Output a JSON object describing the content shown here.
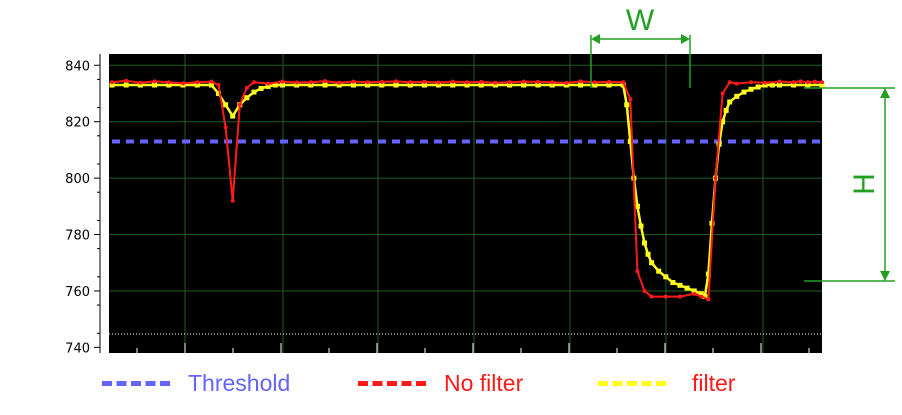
{
  "chart_data": {
    "type": "line",
    "title": "",
    "xlabel": "",
    "ylabel": "",
    "ylim": [
      738,
      844
    ],
    "yticks": [
      "840",
      "820",
      "800",
      "780",
      "760",
      "740"
    ],
    "threshold": 813,
    "annotations": {
      "width_label": "W",
      "height_label": "H"
    },
    "series": [
      {
        "name": "No filter",
        "color": "#ff1a1a",
        "x": [
          0,
          2,
          4,
          6,
          8,
          10,
          12,
          14,
          15,
          16,
          17,
          18,
          19,
          20,
          22,
          24,
          26,
          28,
          30,
          32,
          34,
          36,
          38,
          40,
          42,
          44,
          46,
          48,
          50,
          52,
          54,
          56,
          58,
          60,
          62,
          64,
          66,
          68,
          70,
          72,
          73,
          74,
          75,
          76,
          78,
          80,
          82,
          83,
          84,
          85,
          86,
          87,
          88,
          90,
          92,
          94,
          96,
          97,
          98,
          99,
          100
        ],
        "y": [
          834,
          834.5,
          833.8,
          834.3,
          834,
          833.6,
          834,
          834.2,
          833,
          818,
          792,
          826,
          832,
          834,
          833.5,
          834.2,
          833.9,
          834,
          834.4,
          833.8,
          834.2,
          834,
          834.1,
          834.3,
          834,
          834.1,
          833.9,
          834.2,
          834,
          834.1,
          833.8,
          834,
          834.2,
          834.1,
          834,
          833.7,
          834.3,
          834,
          834.1,
          834,
          828,
          767,
          760,
          758,
          758,
          758,
          759,
          758,
          757,
          800,
          830,
          834,
          833.5,
          834,
          833.8,
          834.2,
          834,
          834.3,
          834,
          834.2,
          834
        ]
      },
      {
        "name": "filter",
        "color": "#ffff1a",
        "x": [
          0,
          2,
          4,
          6,
          8,
          10,
          12,
          14,
          15,
          16,
          17,
          18,
          19,
          20,
          21,
          22,
          23,
          24,
          26,
          28,
          30,
          32,
          34,
          36,
          38,
          40,
          42,
          44,
          46,
          48,
          50,
          52,
          54,
          56,
          58,
          60,
          62,
          64,
          66,
          68,
          70,
          72,
          72.5,
          73,
          73.5,
          74,
          74.5,
          75,
          75.5,
          76,
          77,
          78,
          79,
          80,
          81,
          82,
          83,
          83.5,
          84,
          84.5,
          85,
          85.5,
          86,
          86.5,
          87,
          88,
          89,
          90,
          91,
          92,
          93,
          94,
          96,
          98,
          100
        ],
        "y": [
          833,
          833,
          833,
          833,
          833,
          833,
          833,
          833,
          830,
          826,
          822,
          826,
          828.5,
          830.5,
          831.8,
          832.5,
          833,
          833,
          833,
          833,
          833,
          833,
          833,
          833,
          833,
          833,
          833,
          833,
          833,
          833,
          833,
          833,
          833,
          833,
          833,
          833,
          833,
          833,
          833,
          833,
          833,
          833,
          826,
          813,
          800,
          790,
          783,
          777,
          773,
          770,
          767,
          765,
          763,
          762,
          761,
          760,
          759,
          758,
          766,
          784,
          800,
          812,
          820,
          824,
          827,
          829,
          830.5,
          831.5,
          832.3,
          833,
          833,
          833,
          833,
          833,
          833
        ]
      },
      {
        "name": "Threshold",
        "color": "#6464ff"
      }
    ]
  }
}
